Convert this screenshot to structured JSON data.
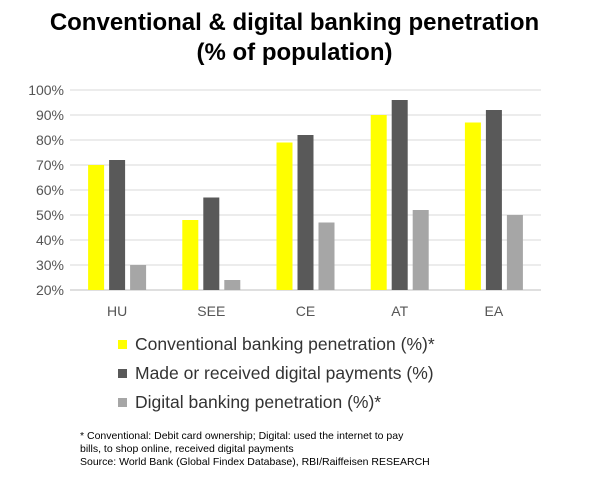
{
  "chart_data": {
    "type": "bar",
    "title_line1": "Conventional & digital banking penetration",
    "title_line2": "(% of population)",
    "categories": [
      "HU",
      "SEE",
      "CE",
      "AT",
      "EA"
    ],
    "series": [
      {
        "name": "Conventional banking penetration (%)*",
        "color": "#FFFF00",
        "values": [
          70,
          48,
          79,
          90,
          87
        ]
      },
      {
        "name": "Made or received digital payments (%)",
        "color": "#595959",
        "values": [
          72,
          57,
          82,
          96,
          92
        ]
      },
      {
        "name": "Digital banking penetration (%)*",
        "color": "#A6A6A6",
        "values": [
          30,
          24,
          47,
          52,
          50
        ]
      }
    ],
    "ylim": [
      20,
      100
    ],
    "yticks": [
      "20%",
      "30%",
      "40%",
      "50%",
      "60%",
      "70%",
      "80%",
      "90%",
      "100%"
    ],
    "grid": true,
    "legend_position": "bottom"
  },
  "footnote": {
    "line1": "* Conventional: Debit card ownership; Digital: used the internet to pay",
    "line2": "bills, to shop online, received digital payments",
    "line3": "Source: World Bank (Global Findex Database), RBI/Raiffeisen RESEARCH"
  }
}
